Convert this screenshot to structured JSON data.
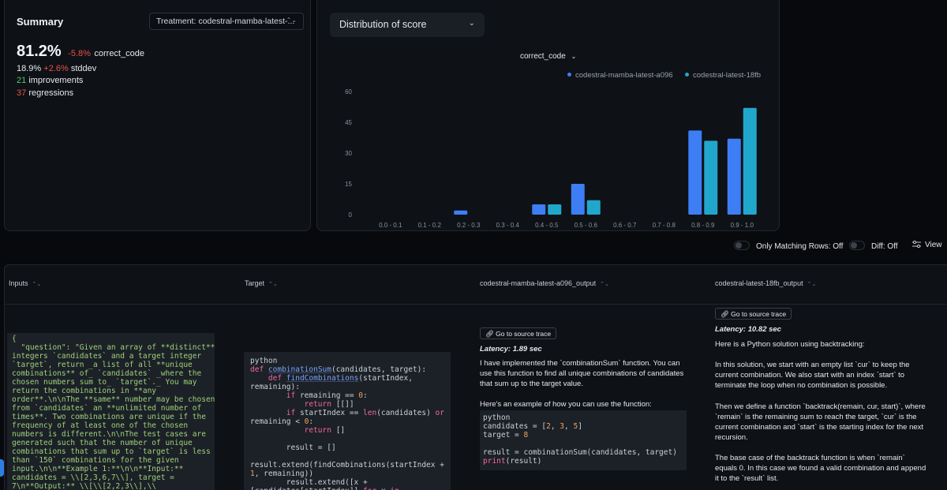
{
  "summary": {
    "title": "Summary",
    "treatment_label": "Treatment:",
    "treatment_value": "codestral-mamba-latest-...",
    "main_value": "81.2%",
    "main_delta": "-5.8%",
    "main_metric": "correct_code",
    "stddev_value": "18.9%",
    "stddev_delta": "+2.6%",
    "stddev_label": "stddev",
    "improvements_count": "21",
    "improvements_label": "improvements",
    "regressions_count": "37",
    "regressions_label": "regressions"
  },
  "distribution": {
    "select_label": "Distribution of score",
    "metric_label": "correct_code"
  },
  "chart_data": {
    "type": "bar",
    "categories": [
      "0.0 - 0.1",
      "0.1 - 0.2",
      "0.2 - 0.3",
      "0.3 - 0.4",
      "0.4 - 0.5",
      "0.5 - 0.6",
      "0.6 - 0.7",
      "0.7 - 0.8",
      "0.8 - 0.9",
      "0.9 - 1.0"
    ],
    "series": [
      {
        "name": "codestral-mamba-latest-a096",
        "color": "#3d7ef5",
        "values": [
          0,
          0,
          2,
          0,
          5,
          15,
          0,
          0,
          41,
          37
        ]
      },
      {
        "name": "codestral-latest-18fb",
        "color": "#22a7cc",
        "values": [
          0,
          0,
          0,
          0,
          5,
          7,
          0,
          0,
          36,
          52
        ]
      }
    ],
    "yticks": [
      0,
      15,
      30,
      45,
      60
    ],
    "ylim": [
      0,
      60
    ],
    "legend": "top-right",
    "grid": false
  },
  "controls": {
    "only_matching": "Only Matching Rows: Off",
    "diff": "Diff: Off",
    "view": "View"
  },
  "table": {
    "headers": [
      "Inputs",
      "Target",
      "codestral-mamba-latest-a096_output",
      "codestral-latest-18fb_output"
    ],
    "input_json": "{\n  \"question\": \"Given an array of **distinct**\nintegers `candidates` and a target integer\n`target`, return _a list of all **unique\ncombinations** of_ `candidates` _where the\nchosen numbers sum to_ `target`._ You may\nreturn the combinations in **any\norder**.\\n\\nThe **same** number may be chosen\nfrom `candidates` an **unlimited number of\ntimes**. Two combinations are unique if the\nfrequency of at least one of the chosen\nnumbers is different.\\n\\nThe test cases are\ngenerated such that the number of unique\ncombinations that sum up to `target` is less\nthan `150` combinations for the given\ninput.\\n\\n**Example 1:**\\n\\n**Input:**\ncandidates = \\\\[2,3,6,7\\\\], target =\n7\\n**Output:** \\\\[\\\\[2,2,3\\\\],\\\\",
    "target_lang": "python",
    "mamba_source_btn": "Go to source trace",
    "mamba_latency": "Latency: 1.89 sec",
    "mamba_text1": "I have implemented the `combinationSum` function. You can use this function to find all unique combinations of candidates that sum up to the target value.",
    "mamba_text2": "Here's an example of how you can use the function:",
    "mamba_code_lang": "python",
    "latest_source_btn": "Go to source trace",
    "latest_latency": "Latency: 10.82 sec",
    "latest_p1": "Here is a Python solution using backtracking:",
    "latest_p2": "In this solution, we start with an empty list `cur` to keep the current combination. We also start with an index `start` to terminate the loop when no combination is possible.",
    "latest_p3": "Then we define a function `backtrack(remain, cur, start)`, where `remain` is the remaining sum to reach the target, `cur` is the current combination and `start` is the starting index for the next recursion.",
    "latest_p4": "The base case of the backtrack function is when `remain` equals 0. In this case we found a valid combination and append it to the `result` list."
  }
}
